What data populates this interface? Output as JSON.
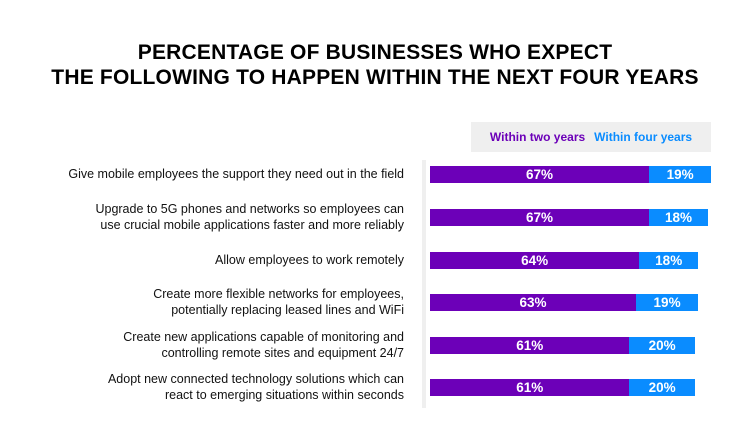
{
  "title": {
    "line1": "PERCENTAGE OF BUSINESSES  WHO EXPECT",
    "line2": "THE FOLLOWING TO HAPPEN WITHIN THE NEXT FOUR YEARS"
  },
  "legend": {
    "series_a": "Within two years",
    "series_b": "Within four years"
  },
  "colors": {
    "series_a": "#6c00b8",
    "series_b": "#0a8cff",
    "legend_bg": "#efefef"
  },
  "rows": [
    {
      "line1": "Give mobile employees the support they need out in the field",
      "line2": "",
      "a": "67%",
      "b": "19%"
    },
    {
      "line1": "Upgrade to 5G phones and networks so employees can",
      "line2": "use crucial mobile applications faster and more reliably",
      "a": "67%",
      "b": "18%"
    },
    {
      "line1": "Allow employees to work remotely",
      "line2": "",
      "a": "64%",
      "b": "18%"
    },
    {
      "line1": "Create more flexible networks for employees,",
      "line2": "potentially replacing leased lines and WiFi",
      "a": "63%",
      "b": "19%"
    },
    {
      "line1": "Create new applications capable of monitoring and",
      "line2": "controlling remote sites and equipment 24/7",
      "a": "61%",
      "b": "20%"
    },
    {
      "line1": "Adopt new connected technology solutions which can",
      "line2": "react to emerging situations within seconds",
      "a": "61%",
      "b": "20%"
    }
  ],
  "chart_data": {
    "type": "bar",
    "orientation": "horizontal",
    "stacked": true,
    "title": "PERCENTAGE OF BUSINESSES WHO EXPECT THE FOLLOWING TO HAPPEN WITHIN THE NEXT FOUR YEARS",
    "categories": [
      "Give mobile employees the support they need out in the field",
      "Upgrade to 5G phones and networks so employees can use crucial mobile applications faster and more reliably",
      "Allow employees to work remotely",
      "Create more flexible networks for employees, potentially replacing leased lines and WiFi",
      "Create new applications capable of monitoring and controlling remote sites and equipment 24/7",
      "Adopt new connected technology solutions which can react to emerging situations within seconds"
    ],
    "series": [
      {
        "name": "Within two years",
        "color": "#6c00b8",
        "values": [
          67,
          67,
          64,
          63,
          61,
          61
        ]
      },
      {
        "name": "Within four years",
        "color": "#0a8cff",
        "values": [
          19,
          18,
          18,
          19,
          20,
          20
        ]
      }
    ],
    "xlabel": "",
    "ylabel": "",
    "legend_position": "top-right",
    "grid": false,
    "unit": "%"
  }
}
